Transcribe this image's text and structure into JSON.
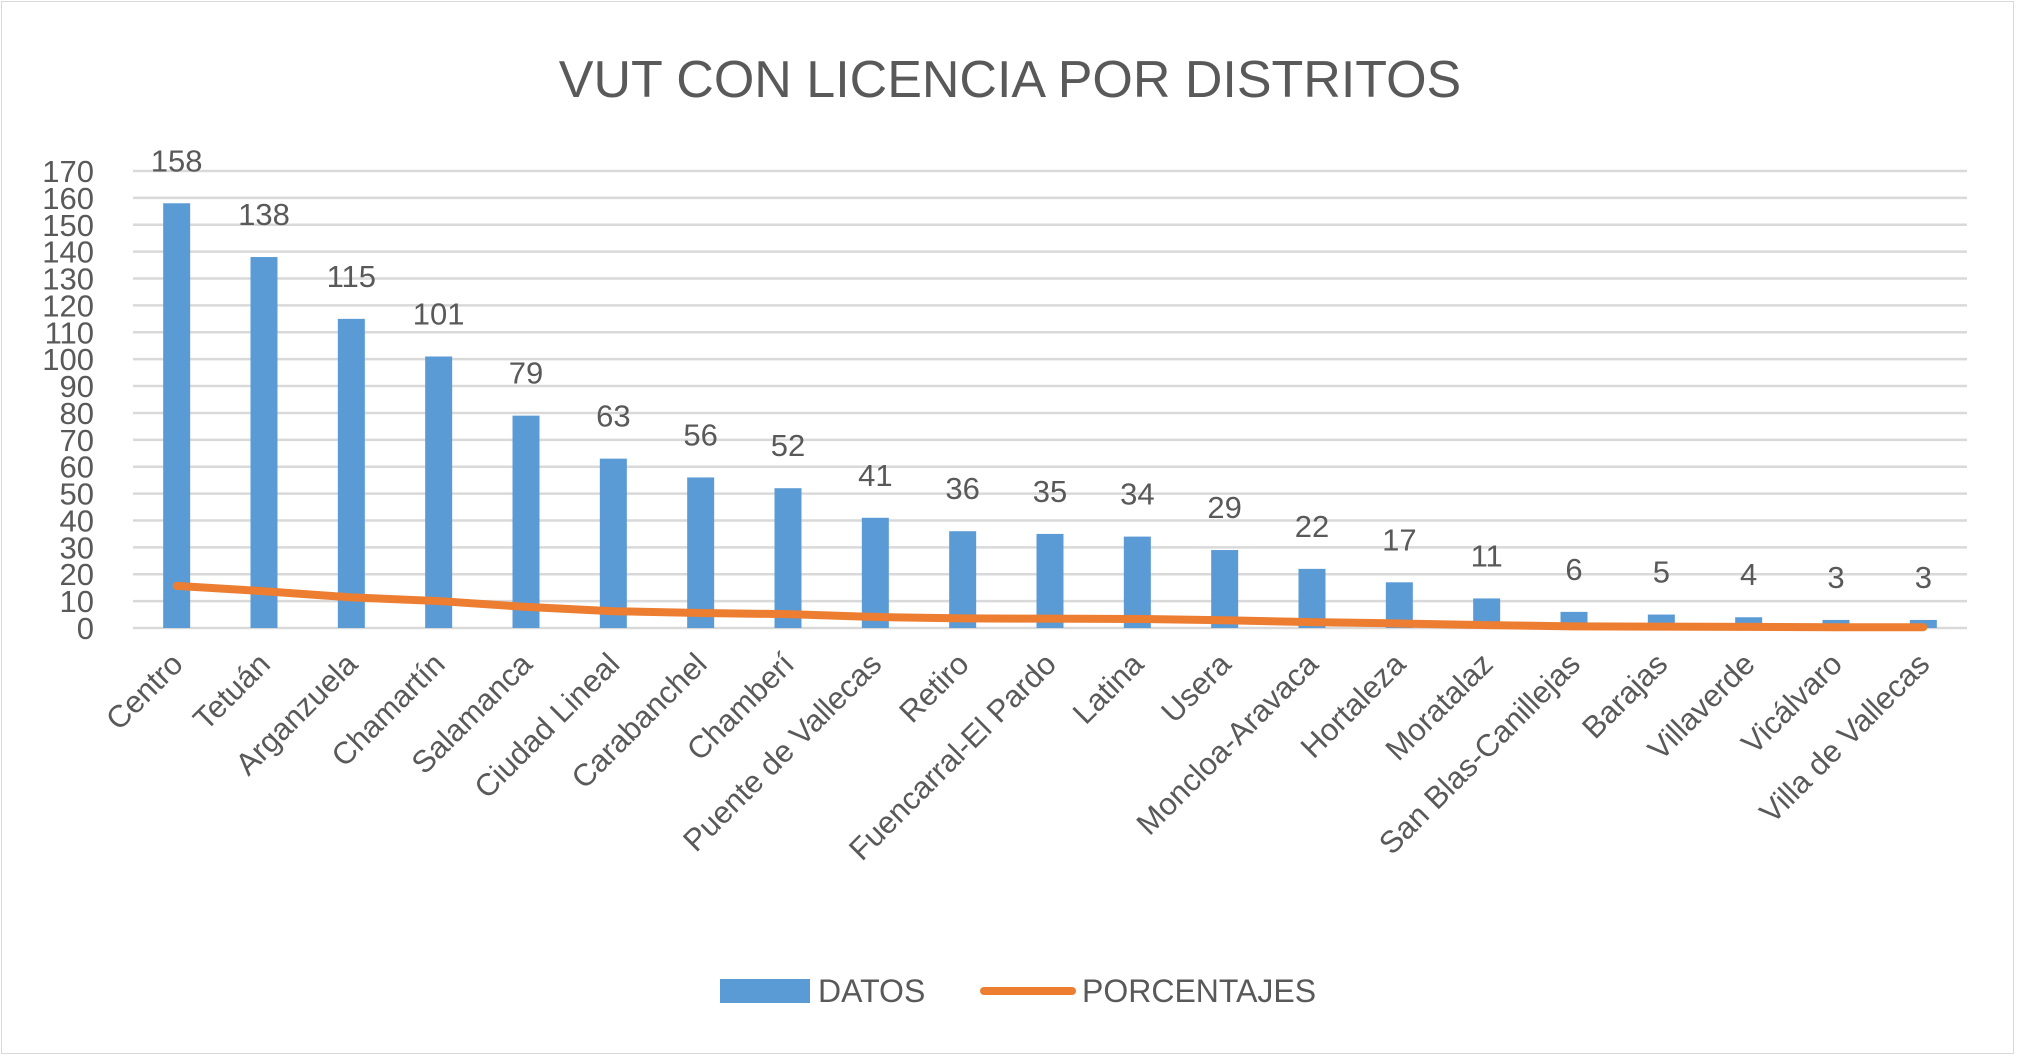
{
  "chart_data": {
    "type": "bar",
    "title": "VUT CON LICENCIA POR DISTRITOS",
    "xlabel": "",
    "ylabel": "",
    "ylim": [
      0,
      170
    ],
    "ytick_step": 10,
    "grid": true,
    "legend_position": "bottom",
    "categories": [
      "Centro",
      "Tetuán",
      "Arganzuela",
      "Chamartín",
      "Salamanca",
      "Ciudad Lineal",
      "Carabanchel",
      "Chamberí",
      "Puente de Vallecas",
      "Retiro",
      "Fuencarral-El Pardo",
      "Latina",
      "Usera",
      "Moncloa-Aravaca",
      "Hortaleza",
      "Moratalaz",
      "San Blas-Canillejas",
      "Barajas",
      "Villaverde",
      "Vicálvaro",
      "Villa de Vallecas"
    ],
    "series": [
      {
        "name": "DATOS",
        "type": "bar",
        "color": "#5b9bd5",
        "values": [
          158,
          138,
          115,
          101,
          79,
          63,
          56,
          52,
          41,
          36,
          35,
          34,
          29,
          22,
          17,
          11,
          6,
          5,
          4,
          3,
          3
        ]
      },
      {
        "name": "PORCENTAJES",
        "type": "line",
        "color": "#ed7d31",
        "values": [
          15.67,
          13.69,
          11.41,
          10.02,
          7.84,
          6.25,
          5.56,
          5.16,
          4.07,
          3.57,
          3.47,
          3.37,
          2.88,
          2.18,
          1.69,
          1.09,
          0.6,
          0.5,
          0.4,
          0.3,
          0.3
        ]
      }
    ]
  }
}
